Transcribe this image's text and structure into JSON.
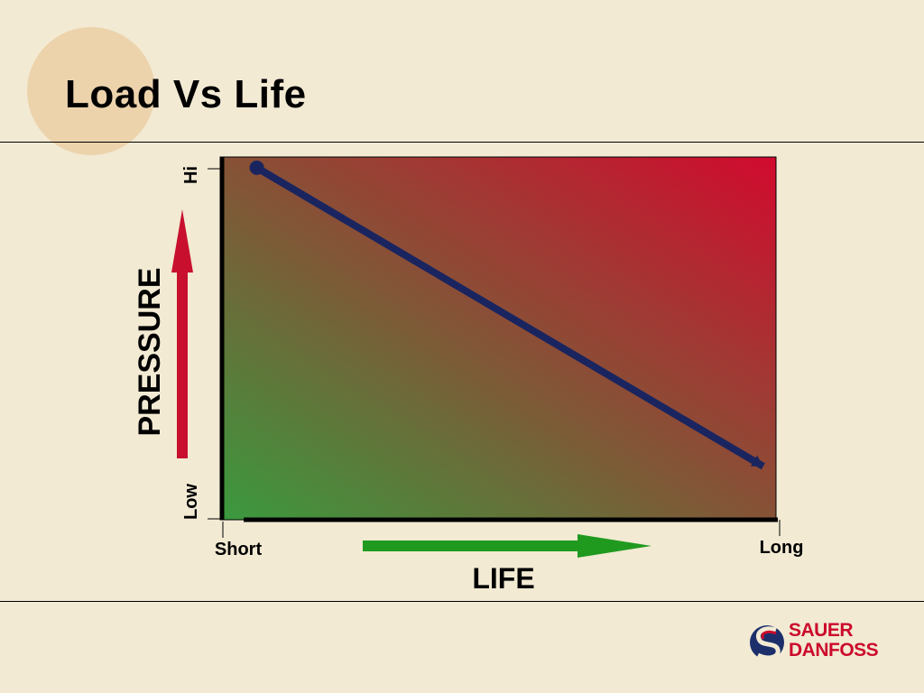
{
  "slide": {
    "title": "Load Vs Life"
  },
  "logo": {
    "line1": "SAUER",
    "line2": "DANFOSS",
    "brand_red": "#cc0a2c",
    "brand_blue": "#1c2f6b"
  },
  "colors": {
    "background": "#f2ead3",
    "gradient_low": "#3a9a3e",
    "gradient_high": "#d20a2e",
    "line": "#1a2560",
    "pressure_arrow": "#c8102e",
    "life_arrow": "#1f9a1f"
  },
  "chart_data": {
    "type": "line",
    "xlabel": "LIFE",
    "ylabel": "PRESSURE",
    "x_ticks": [
      "Short",
      "Long"
    ],
    "y_ticks": [
      "Low",
      "Hi"
    ],
    "xlim": [
      0,
      1
    ],
    "ylim": [
      0,
      1
    ],
    "series": [
      {
        "points": [
          [
            0.06,
            0.98
          ],
          [
            0.98,
            0.14
          ]
        ]
      }
    ]
  }
}
